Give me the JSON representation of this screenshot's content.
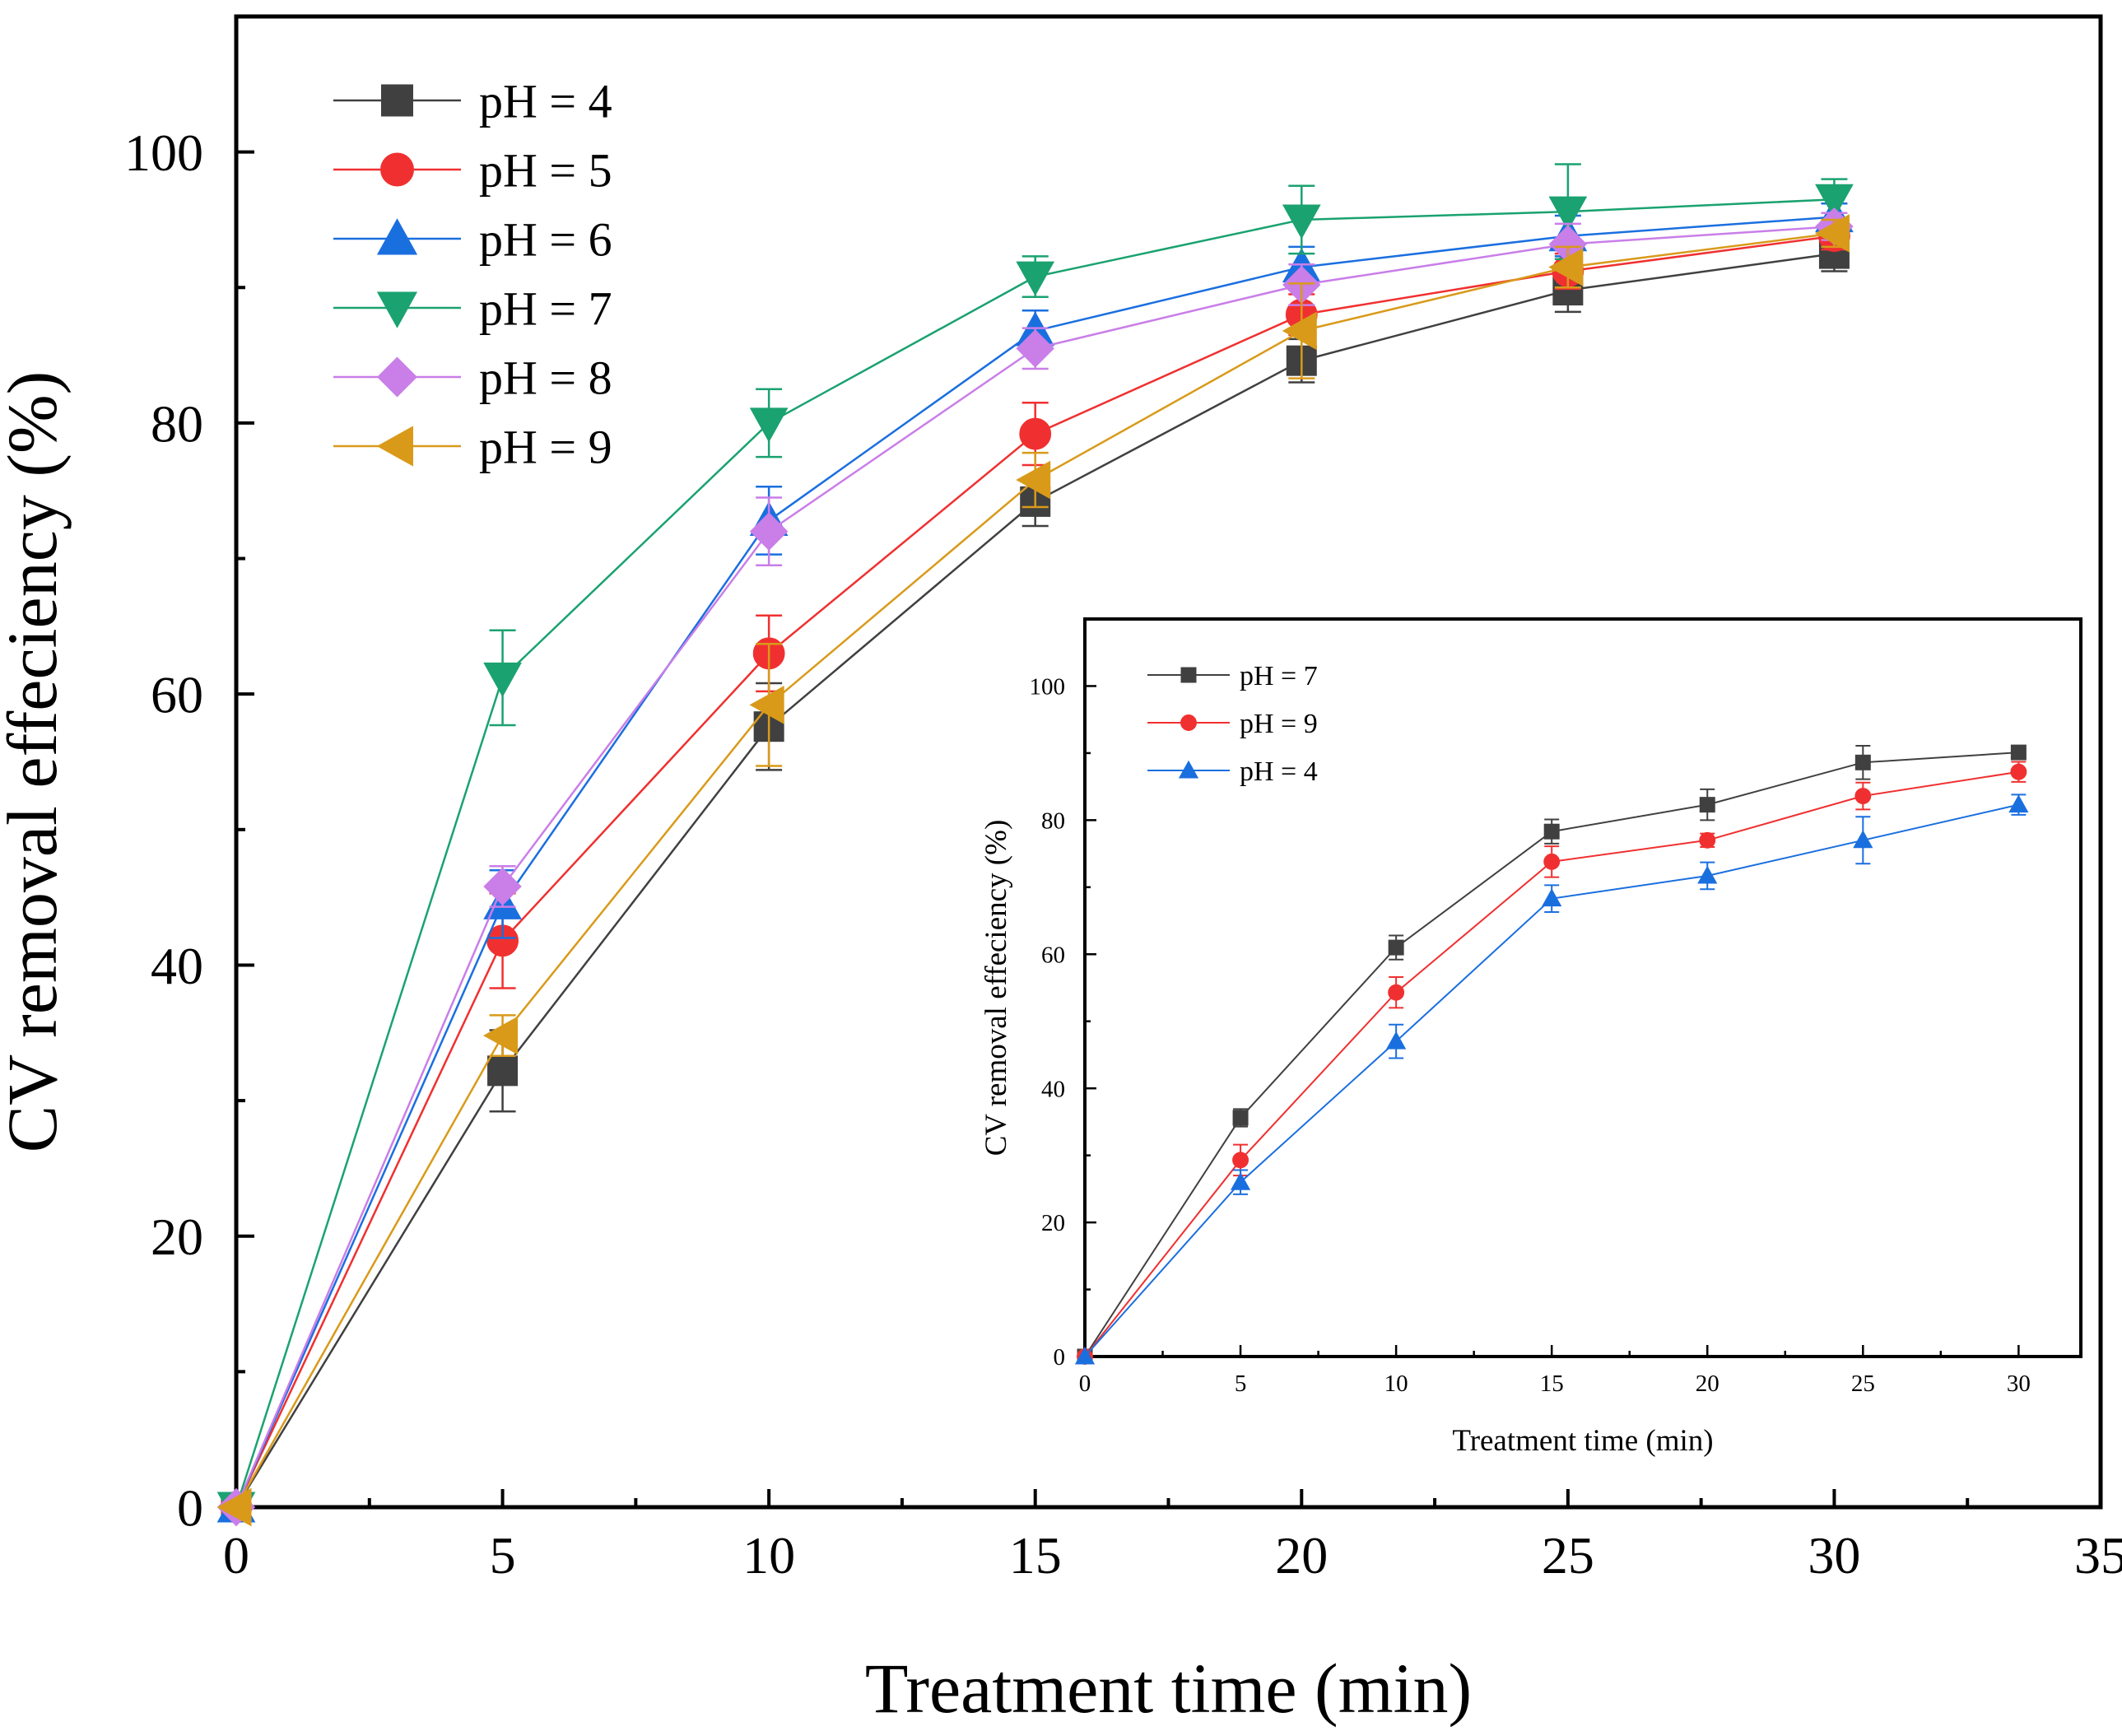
{
  "chart_data": [
    {
      "id": "main",
      "type": "line",
      "title": "",
      "xlabel": "Treatment time (min)",
      "ylabel": "CV removal effeciency (%)",
      "xlim": [
        0,
        35
      ],
      "ylim": [
        0,
        110
      ],
      "xticks": [
        0,
        5,
        10,
        15,
        20,
        25,
        30,
        35
      ],
      "yticks": [
        0,
        20,
        40,
        60,
        80,
        100
      ],
      "grid": false,
      "legend_position": "top-left",
      "x": [
        0,
        5,
        10,
        15,
        20,
        25,
        30
      ],
      "series": [
        {
          "name": "pH = 4",
          "color": "#404040",
          "marker": "square",
          "values": [
            0,
            32.2,
            57.6,
            74.2,
            84.6,
            89.8,
            92.5
          ],
          "errors": [
            0,
            3.0,
            3.2,
            1.8,
            1.6,
            1.6,
            1.3
          ]
        },
        {
          "name": "pH = 5",
          "color": "#f03030",
          "marker": "circle",
          "values": [
            0,
            41.8,
            63.0,
            79.2,
            88.0,
            91.2,
            93.8
          ],
          "errors": [
            0,
            3.5,
            2.8,
            2.3,
            1.5,
            1.3,
            1.0
          ]
        },
        {
          "name": "pH = 6",
          "color": "#1a6fdf",
          "marker": "triangle-up",
          "values": [
            0,
            44.5,
            72.8,
            86.8,
            91.5,
            93.8,
            95.2
          ],
          "errors": [
            0,
            2.5,
            2.5,
            1.5,
            1.5,
            1.5,
            1.0
          ]
        },
        {
          "name": "pH = 7",
          "color": "#1aa270",
          "marker": "triangle-down",
          "values": [
            0,
            61.2,
            80.0,
            90.8,
            95.0,
            95.6,
            96.5
          ],
          "errors": [
            0,
            3.5,
            2.5,
            1.5,
            2.5,
            3.5,
            1.5
          ]
        },
        {
          "name": "pH = 8",
          "color": "#c97ee8",
          "marker": "diamond",
          "values": [
            0,
            45.8,
            72.0,
            85.5,
            90.2,
            93.2,
            94.5
          ],
          "errors": [
            0,
            1.5,
            2.5,
            1.5,
            1.5,
            1.5,
            1.0
          ]
        },
        {
          "name": "pH = 9",
          "color": "#d99a1a",
          "marker": "triangle-left",
          "values": [
            0,
            34.8,
            59.2,
            75.8,
            86.8,
            91.5,
            94.0
          ],
          "errors": [
            0,
            1.5,
            4.5,
            2.0,
            3.5,
            1.5,
            1.0
          ]
        }
      ]
    },
    {
      "id": "inset",
      "type": "line",
      "title": "",
      "xlabel": "Treatment time (min)",
      "ylabel": "CV removal effeciency (%)",
      "xlim": [
        0,
        32
      ],
      "ylim": [
        0,
        110
      ],
      "xticks": [
        0,
        5,
        10,
        15,
        20,
        25,
        30
      ],
      "yticks": [
        0,
        20,
        40,
        60,
        80,
        100
      ],
      "grid": false,
      "legend_position": "top-left",
      "x": [
        0,
        5,
        10,
        15,
        20,
        25,
        30
      ],
      "series": [
        {
          "name": "pH = 7",
          "color": "#404040",
          "marker": "square",
          "values": [
            0,
            35.6,
            61.0,
            78.3,
            82.3,
            88.6,
            90.1
          ],
          "errors": [
            0,
            1.3,
            1.8,
            1.8,
            2.3,
            2.5,
            1.0
          ]
        },
        {
          "name": "pH = 9",
          "color": "#f03030",
          "marker": "circle",
          "values": [
            0,
            29.3,
            54.3,
            73.8,
            77.0,
            83.6,
            87.2
          ],
          "errors": [
            0,
            2.3,
            2.3,
            2.3,
            1.0,
            2.0,
            1.5
          ]
        },
        {
          "name": "pH = 4",
          "color": "#1a6fdf",
          "marker": "triangle-up",
          "values": [
            0,
            26.0,
            47.0,
            68.3,
            71.7,
            77.0,
            82.3
          ],
          "errors": [
            0,
            1.8,
            2.5,
            2.0,
            2.0,
            3.5,
            1.5
          ]
        }
      ]
    }
  ]
}
